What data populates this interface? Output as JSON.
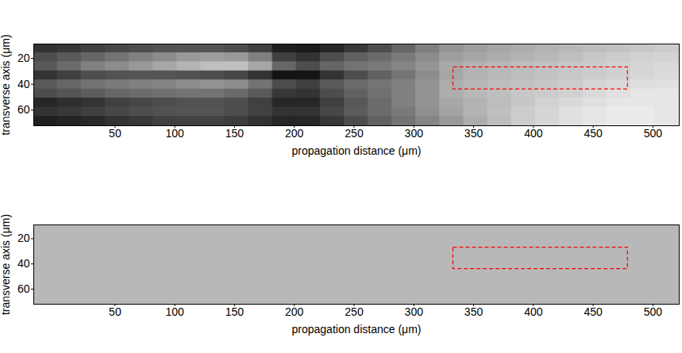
{
  "chart_data": [
    {
      "type": "heatmap",
      "xlabel": "propagation distance (μm)",
      "ylabel": "transverse axis (μm)",
      "xlim": [
        -18,
        522
      ],
      "xticks": [
        50,
        100,
        150,
        200,
        250,
        300,
        350,
        400,
        450,
        500
      ],
      "ylim": [
        72,
        9
      ],
      "yticks": [
        20,
        40,
        60
      ],
      "clim": [
        0,
        1
      ],
      "x_edges": [
        -18,
        2,
        22,
        42,
        62,
        82,
        102,
        122,
        142,
        162,
        182,
        202,
        222,
        242,
        262,
        282,
        302,
        322,
        342,
        362,
        382,
        402,
        422,
        442,
        462,
        482,
        502,
        522
      ],
      "y_edges": [
        9,
        16,
        23,
        30,
        37,
        44,
        51,
        58,
        65,
        72
      ],
      "cells": [
        [
          0.2,
          0.22,
          0.25,
          0.28,
          0.3,
          0.32,
          0.33,
          0.33,
          0.3,
          0.25,
          0.12,
          0.1,
          0.15,
          0.22,
          0.3,
          0.4,
          0.5,
          0.58,
          0.62,
          0.65,
          0.68,
          0.7,
          0.72,
          0.74,
          0.76,
          0.78,
          0.8
        ],
        [
          0.3,
          0.35,
          0.4,
          0.45,
          0.5,
          0.55,
          0.6,
          0.62,
          0.6,
          0.5,
          0.25,
          0.2,
          0.3,
          0.38,
          0.42,
          0.48,
          0.55,
          0.62,
          0.65,
          0.68,
          0.7,
          0.72,
          0.75,
          0.78,
          0.8,
          0.82,
          0.83
        ],
        [
          0.35,
          0.42,
          0.5,
          0.55,
          0.6,
          0.65,
          0.7,
          0.75,
          0.75,
          0.65,
          0.4,
          0.3,
          0.4,
          0.45,
          0.48,
          0.52,
          0.58,
          0.66,
          0.7,
          0.72,
          0.74,
          0.76,
          0.78,
          0.8,
          0.82,
          0.84,
          0.85
        ],
        [
          0.2,
          0.25,
          0.3,
          0.32,
          0.33,
          0.33,
          0.32,
          0.3,
          0.28,
          0.2,
          0.08,
          0.08,
          0.2,
          0.3,
          0.38,
          0.46,
          0.55,
          0.65,
          0.7,
          0.72,
          0.74,
          0.76,
          0.78,
          0.8,
          0.82,
          0.84,
          0.86
        ],
        [
          0.35,
          0.4,
          0.45,
          0.48,
          0.5,
          0.52,
          0.55,
          0.58,
          0.55,
          0.45,
          0.3,
          0.25,
          0.35,
          0.42,
          0.46,
          0.5,
          0.58,
          0.68,
          0.72,
          0.74,
          0.76,
          0.78,
          0.8,
          0.83,
          0.85,
          0.87,
          0.88
        ],
        [
          0.3,
          0.33,
          0.36,
          0.4,
          0.42,
          0.44,
          0.45,
          0.45,
          0.42,
          0.35,
          0.22,
          0.2,
          0.3,
          0.38,
          0.44,
          0.5,
          0.58,
          0.68,
          0.72,
          0.75,
          0.78,
          0.8,
          0.82,
          0.85,
          0.88,
          0.9,
          0.9
        ],
        [
          0.15,
          0.18,
          0.2,
          0.25,
          0.28,
          0.3,
          0.32,
          0.32,
          0.3,
          0.25,
          0.15,
          0.15,
          0.25,
          0.34,
          0.42,
          0.5,
          0.58,
          0.66,
          0.7,
          0.74,
          0.78,
          0.82,
          0.85,
          0.88,
          0.9,
          0.9,
          0.9
        ],
        [
          0.2,
          0.22,
          0.25,
          0.28,
          0.3,
          0.32,
          0.33,
          0.33,
          0.3,
          0.26,
          0.2,
          0.2,
          0.28,
          0.36,
          0.42,
          0.48,
          0.56,
          0.64,
          0.7,
          0.75,
          0.8,
          0.84,
          0.88,
          0.9,
          0.92,
          0.92,
          0.9
        ],
        [
          0.12,
          0.14,
          0.16,
          0.2,
          0.22,
          0.25,
          0.26,
          0.26,
          0.24,
          0.2,
          0.15,
          0.15,
          0.22,
          0.3,
          0.38,
          0.45,
          0.52,
          0.6,
          0.68,
          0.74,
          0.8,
          0.84,
          0.88,
          0.9,
          0.92,
          0.92,
          0.9
        ]
      ],
      "rectangle": {
        "x": [
          333,
          479
        ],
        "y": [
          27,
          44
        ],
        "color": "red",
        "line_style": "dashed"
      }
    },
    {
      "type": "heatmap",
      "xlabel": "propagation distance (μm)",
      "ylabel": "transverse axis (μm)",
      "xlim": [
        -18,
        522
      ],
      "xticks": [
        50,
        100,
        150,
        200,
        250,
        300,
        350,
        400,
        450,
        500
      ],
      "ylim": [
        72,
        9
      ],
      "yticks": [
        20,
        40,
        60
      ],
      "clim": [
        0,
        1
      ],
      "x_edges": [
        -18,
        522
      ],
      "y_edges": [
        9,
        72
      ],
      "cells": [
        [
          0.72
        ]
      ],
      "rectangle": {
        "x": [
          333,
          479
        ],
        "y": [
          27,
          44
        ],
        "color": "red",
        "line_style": "dashed"
      }
    }
  ]
}
